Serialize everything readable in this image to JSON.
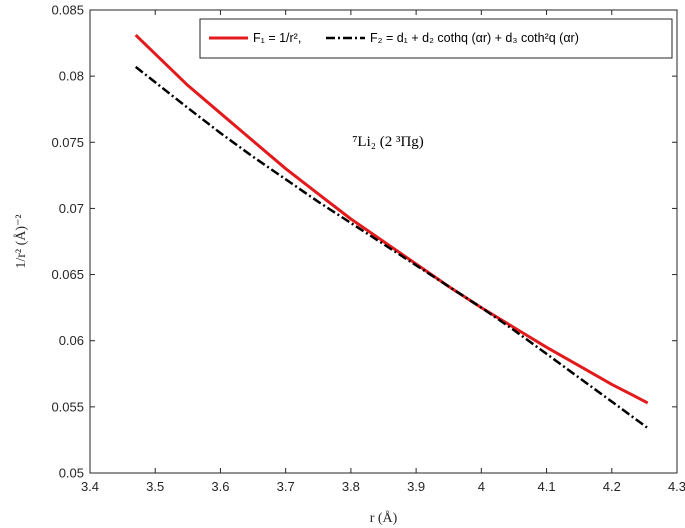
{
  "chart_data": {
    "type": "line",
    "title": "",
    "xlabel": "r (Å)",
    "ylabel": "1/r² (Å)⁻²",
    "xlim": [
      3.4,
      4.3
    ],
    "ylim": [
      0.05,
      0.085
    ],
    "xticks": [
      3.4,
      3.5,
      3.6,
      3.7,
      3.8,
      3.9,
      4.0,
      4.1,
      4.2,
      4.3
    ],
    "xtick_labels": [
      "3.4",
      "3.5",
      "3.6",
      "3.7",
      "3.8",
      "3.9",
      "4",
      "4.1",
      "4.2",
      "4.3"
    ],
    "yticks": [
      0.05,
      0.055,
      0.06,
      0.065,
      0.07,
      0.075,
      0.08,
      0.085
    ],
    "ytick_labels": [
      "0.05",
      "0.055",
      "0.06",
      "0.065",
      "0.07",
      "0.075",
      "0.08",
      "0.085"
    ],
    "grid": false,
    "legend_position": "top-right",
    "annotation": "⁷Li₂ (2 ³Πg)",
    "x": [
      3.47,
      3.55,
      3.6,
      3.65,
      3.7,
      3.75,
      3.8,
      3.85,
      3.9,
      3.95,
      4.0,
      4.05,
      4.1,
      4.15,
      4.2,
      4.255
    ],
    "series": [
      {
        "name": "F₁ = 1/r²,",
        "color": "#e31a1c",
        "style": "solid",
        "values": [
          0.0831,
          0.0793,
          0.0772,
          0.0751,
          0.073,
          0.0711,
          0.0692,
          0.0675,
          0.0658,
          0.0641,
          0.0625,
          0.061,
          0.0595,
          0.0581,
          0.0567,
          0.0553
        ]
      },
      {
        "name": "F₂ = d₁ + d₂ cothq (αr) + d₃ coth²q (αr)",
        "color": "#000000",
        "style": "dashdot",
        "values": [
          0.0807,
          0.0776,
          0.0757,
          0.0739,
          0.0722,
          0.0705,
          0.0689,
          0.0673,
          0.0657,
          0.0641,
          0.0625,
          0.0608,
          0.059,
          0.0572,
          0.0554,
          0.0534
        ]
      }
    ]
  },
  "legend": {
    "f1_label": "F₁ = 1/r²,",
    "f2_label": "F₂ = d₁ + d₂ cothq (αr) + d₃ coth²q (αr)"
  }
}
